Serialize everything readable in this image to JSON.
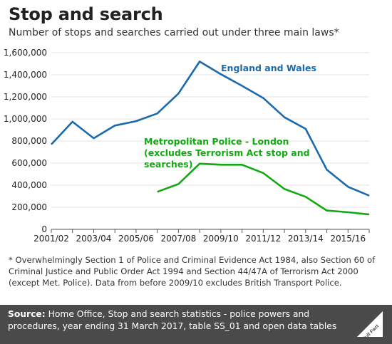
{
  "header": {
    "title": "Stop and search",
    "subtitle": "Number of stops and searches carried out under three main laws*"
  },
  "footnote": "* Overwhelmingly Section 1 of Police and Criminal Evidence Act 1984, also Section 60 of Criminal Justice and Public Order Act 1994 and Section 44/47A of Terrorism Act 2000 (except Met. Police).  Data from before 2009/10 excludes British Transport Police.",
  "source": {
    "label": "Source:",
    "text": " Home Office, Stop and search statistics - police powers and procedures, year ending 31 March 2017, table SS_01 and open data tables"
  },
  "logo": {
    "text": "Full Fact"
  },
  "colors": {
    "england_wales": "#1a6aad",
    "met": "#13a913",
    "source_bar": "#4a4a4a"
  },
  "chart_data": {
    "type": "line",
    "categories": [
      "2001/02",
      "2002/03",
      "2003/04",
      "2004/05",
      "2005/06",
      "2006/07",
      "2007/08",
      "2008/09",
      "2009/10",
      "2010/11",
      "2011/12",
      "2012/13",
      "2013/14",
      "2014/15",
      "2015/16",
      "2016/17"
    ],
    "x_tick_labels": [
      "2001/02",
      "2003/04",
      "2005/06",
      "2007/08",
      "2009/10",
      "2011/12",
      "2013/14",
      "2015/16"
    ],
    "y_ticks": [
      "0",
      "200,000",
      "400,000",
      "600,000",
      "800,000",
      "1,000,000",
      "1,200,000",
      "1,400,000",
      "1,600,000"
    ],
    "ylim": [
      0,
      1600000
    ],
    "series": [
      {
        "name": "England and Wales",
        "color": "#1a6aad",
        "values": [
          770000,
          975000,
          825000,
          940000,
          980000,
          1050000,
          1230000,
          1520000,
          1405000,
          1300000,
          1190000,
          1015000,
          910000,
          540000,
          385000,
          305000
        ]
      },
      {
        "name": "Metropolitan Police - London (excludes Terrorism Act stop and searches)",
        "label_lines": [
          "Metropolitan Police - London",
          "(excludes Terrorism Act stop and",
          "searches)"
        ],
        "color": "#13a913",
        "values": [
          null,
          null,
          null,
          null,
          null,
          340000,
          410000,
          595000,
          585000,
          585000,
          510000,
          365000,
          295000,
          170000,
          155000,
          135000
        ]
      }
    ]
  }
}
